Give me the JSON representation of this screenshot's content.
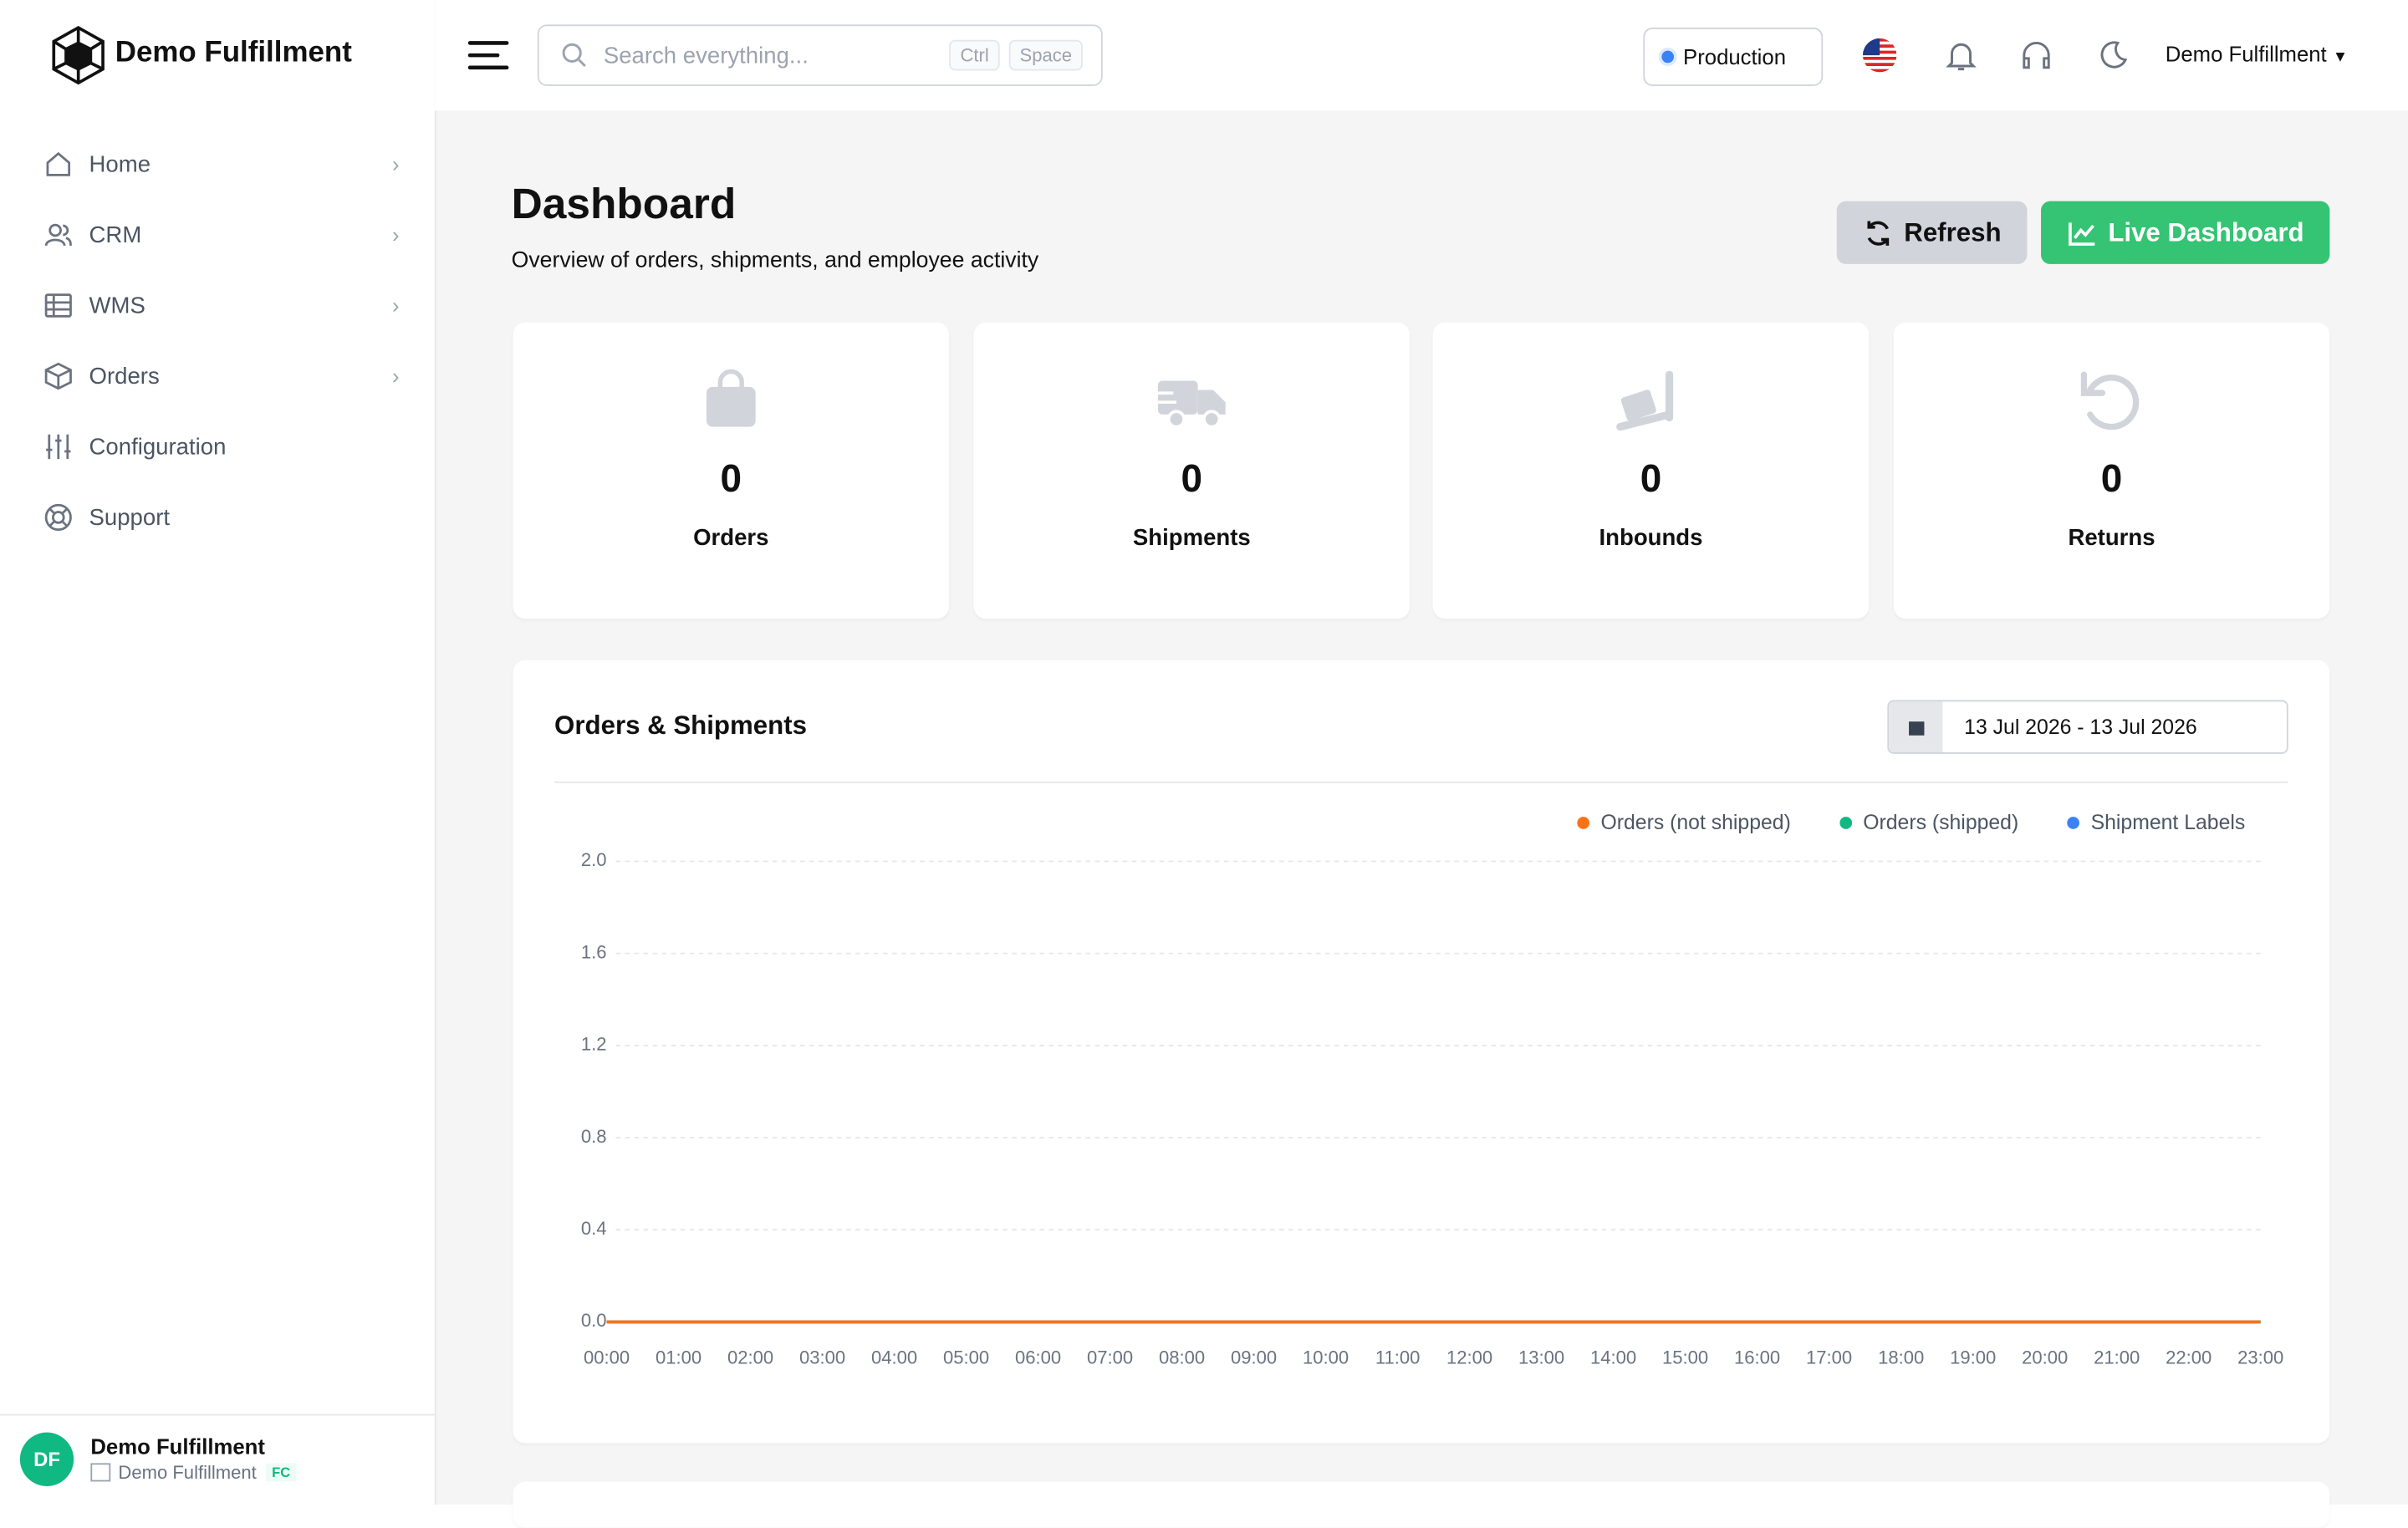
{
  "header": {
    "brand": "Demo Fulfillment",
    "search_placeholder": "Search everything...",
    "shortcut_keys": [
      "Ctrl",
      "Space"
    ],
    "environment": "Production",
    "account": "Demo Fulfillment"
  },
  "sidebar": {
    "nav": [
      "Home",
      "CRM",
      "WMS",
      "Orders",
      "Configuration",
      "Support"
    ],
    "user": {
      "initials": "DF",
      "name": "Demo Fulfillment",
      "company": "Demo Fulfillment",
      "badge": "FC"
    }
  },
  "page": {
    "title": "Dashboard",
    "subtitle": "Overview of orders, shipments, and employee activity",
    "buttons": [
      "Refresh",
      "Live Dashboard"
    ]
  },
  "stats": [
    {
      "value": 0,
      "label": "Orders"
    },
    {
      "value": 0,
      "label": "Shipments"
    },
    {
      "value": 0,
      "label": "Inbounds"
    },
    {
      "value": 0,
      "label": "Returns"
    }
  ],
  "chart_data": {
    "type": "line",
    "title": "Orders & Shipments",
    "date_range": "13 Jul 2026 - 13 Jul 2026",
    "x": [
      "00:00",
      "01:00",
      "02:00",
      "03:00",
      "04:00",
      "05:00",
      "06:00",
      "07:00",
      "08:00",
      "09:00",
      "10:00",
      "11:00",
      "12:00",
      "13:00",
      "14:00",
      "15:00",
      "16:00",
      "17:00",
      "18:00",
      "19:00",
      "20:00",
      "21:00",
      "22:00",
      "23:00"
    ],
    "series": [
      {
        "name": "Orders (not shipped)",
        "color": "#f97316",
        "values": [
          0,
          0,
          0,
          0,
          0,
          0,
          0,
          0,
          0,
          0,
          0,
          0,
          0,
          0,
          0,
          0,
          0,
          0,
          0,
          0,
          0,
          0,
          0,
          0
        ]
      },
      {
        "name": "Orders (shipped)",
        "color": "#10b981",
        "values": [
          0,
          0,
          0,
          0,
          0,
          0,
          0,
          0,
          0,
          0,
          0,
          0,
          0,
          0,
          0,
          0,
          0,
          0,
          0,
          0,
          0,
          0,
          0,
          0
        ]
      },
      {
        "name": "Shipment Labels",
        "color": "#3b82f6",
        "values": [
          0,
          0,
          0,
          0,
          0,
          0,
          0,
          0,
          0,
          0,
          0,
          0,
          0,
          0,
          0,
          0,
          0,
          0,
          0,
          0,
          0,
          0,
          0,
          0
        ]
      }
    ],
    "ylim": [
      0,
      2
    ],
    "yticks": [
      {
        "value": 0,
        "label": "0.0"
      },
      0.4,
      0.8,
      1.2,
      1.6,
      {
        "value": 2,
        "label": "2.0"
      }
    ],
    "grid": true
  }
}
